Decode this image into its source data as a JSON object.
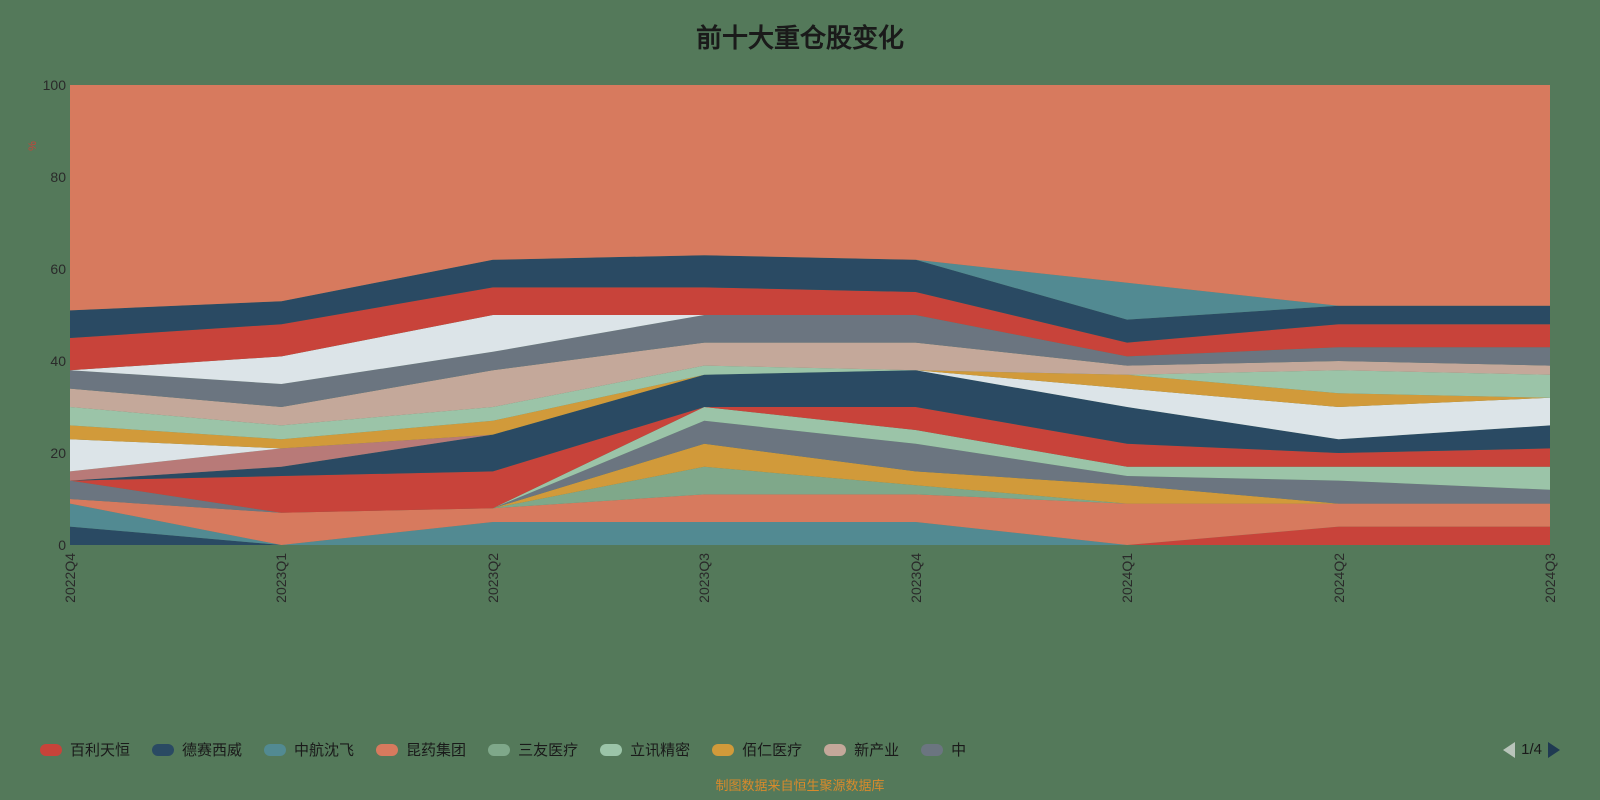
{
  "title": {
    "text": "前十大重仓股变化",
    "fontsize": 26,
    "color": "#1a1a1a"
  },
  "y_axis_label": "%",
  "footer": "制图数据来自恒生聚源数据库",
  "pager": {
    "current": 1,
    "total": 4,
    "text": "1/4"
  },
  "chart": {
    "type": "100%-stacked-area",
    "background": "#54795a",
    "plot_bg": "transparent",
    "ylim": [
      0,
      100
    ],
    "yticks": [
      0,
      20,
      40,
      60,
      80,
      100
    ],
    "categories": [
      "2022Q4",
      "2023Q1",
      "2023Q2",
      "2023Q3",
      "2023Q4",
      "2024Q1",
      "2024Q2",
      "2024Q3"
    ],
    "tick_fontsize": 14,
    "tick_color": "#2a2a2a",
    "x_tick_rotation": -90,
    "series_order_comment": "bottom → top stacking order; values are per-period share (sum to 100)",
    "series": [
      {
        "name": "s_a",
        "color": "#2a4a63",
        "values": [
          4,
          0,
          0,
          0,
          0,
          0,
          0,
          0
        ]
      },
      {
        "name": "s_b",
        "color": "#528a92",
        "values": [
          5,
          0,
          5,
          5,
          5,
          0,
          0,
          0
        ]
      },
      {
        "name": "s_c",
        "color": "#c8433a",
        "values": [
          0,
          0,
          0,
          0,
          0,
          0,
          4,
          4
        ]
      },
      {
        "name": "s_d",
        "color": "#d77a5e",
        "values": [
          1,
          7,
          3,
          6,
          6,
          9,
          5,
          5
        ]
      },
      {
        "name": "s_e",
        "color": "#7fa88a",
        "values": [
          0,
          0,
          0,
          6,
          2,
          0,
          0,
          0
        ]
      },
      {
        "name": "s_f",
        "color": "#d19a3a",
        "values": [
          0,
          0,
          0,
          5,
          3,
          4,
          0,
          0
        ]
      },
      {
        "name": "s_g",
        "color": "#6b7580",
        "values": [
          4,
          0,
          0,
          5,
          6,
          2,
          5,
          3
        ]
      },
      {
        "name": "s_h",
        "color": "#9bc4a8",
        "values": [
          0,
          0,
          0,
          3,
          3,
          2,
          3,
          5
        ]
      },
      {
        "name": "s_i",
        "color": "#c8433a",
        "values": [
          0,
          8,
          8,
          0,
          5,
          5,
          3,
          4
        ]
      },
      {
        "name": "s_j",
        "color": "#2a4a63",
        "values": [
          0,
          2,
          8,
          7,
          8,
          8,
          3,
          5
        ]
      },
      {
        "name": "s_k",
        "color": "#b87a78",
        "values": [
          2,
          4,
          0,
          0,
          0,
          0,
          0,
          0
        ]
      },
      {
        "name": "s_l",
        "color": "#dce4e8",
        "values": [
          7,
          0,
          0,
          0,
          0,
          4,
          7,
          6
        ]
      },
      {
        "name": "s_m",
        "color": "#d19a3a",
        "values": [
          3,
          2,
          3,
          0,
          0,
          3,
          3,
          0
        ]
      },
      {
        "name": "s_n",
        "color": "#9bc4a8",
        "values": [
          4,
          3,
          3,
          2,
          0,
          0,
          5,
          5
        ]
      },
      {
        "name": "s_o",
        "color": "#c4a89a",
        "values": [
          4,
          4,
          8,
          5,
          6,
          2,
          2,
          2
        ]
      },
      {
        "name": "s_p",
        "color": "#6b7580",
        "values": [
          4,
          5,
          4,
          6,
          6,
          2,
          3,
          4
        ]
      },
      {
        "name": "s_q",
        "color": "#dce4e8",
        "values": [
          0,
          6,
          8,
          0,
          0,
          0,
          0,
          0
        ]
      },
      {
        "name": "s_r",
        "color": "#c8433a",
        "values": [
          7,
          7,
          6,
          6,
          5,
          3,
          5,
          5
        ]
      },
      {
        "name": "s_s",
        "color": "#2a4a63",
        "values": [
          6,
          5,
          6,
          7,
          7,
          5,
          4,
          4
        ]
      },
      {
        "name": "s_t",
        "color": "#528a92",
        "values": [
          0,
          0,
          0,
          0,
          0,
          8,
          0,
          0
        ]
      },
      {
        "name": "s_u",
        "color": "#d77a5e",
        "values": [
          49,
          47,
          38,
          37,
          38,
          43,
          48,
          48
        ]
      }
    ]
  },
  "legend": {
    "items": [
      {
        "label": "百利天恒",
        "color": "#c8433a"
      },
      {
        "label": "德赛西威",
        "color": "#2a4a63"
      },
      {
        "label": "中航沈飞",
        "color": "#528a92"
      },
      {
        "label": "昆药集团",
        "color": "#d77a5e"
      },
      {
        "label": "三友医疗",
        "color": "#7fa88a"
      },
      {
        "label": "立讯精密",
        "color": "#9bc4a8"
      },
      {
        "label": "佰仁医疗",
        "color": "#d19a3a"
      },
      {
        "label": "新产业",
        "color": "#c4a89a"
      },
      {
        "label": "中",
        "color": "#6b7580"
      }
    ],
    "swatch_radius": 6,
    "fontsize": 15
  }
}
